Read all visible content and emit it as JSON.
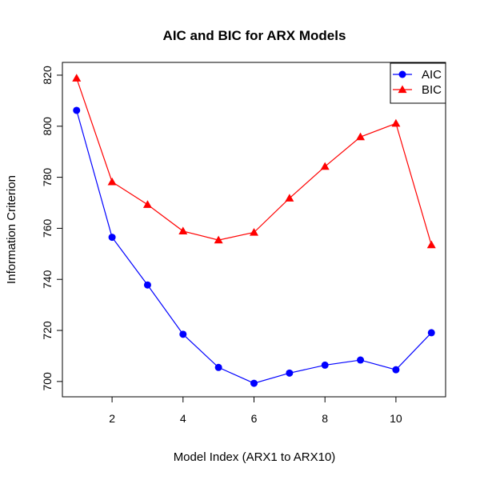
{
  "chart_data": {
    "type": "line",
    "title": "AIC and BIC for ARX Models",
    "xlabel": "Model Index (ARX1 to ARX10)",
    "ylabel": "Information Criterion",
    "xlim": [
      0.6,
      11.4
    ],
    "ylim": [
      694,
      825
    ],
    "xticks": [
      2,
      4,
      6,
      8,
      10
    ],
    "yticks": [
      700,
      720,
      740,
      760,
      780,
      800,
      820
    ],
    "grid": false,
    "legend_position": "top-right",
    "x": [
      1,
      2,
      3,
      4,
      5,
      6,
      7,
      8,
      9,
      10,
      11
    ],
    "series": [
      {
        "name": "AIC",
        "color": "#0000ff",
        "marker": "circle",
        "values": [
          806.2,
          756.5,
          737.8,
          718.5,
          705.5,
          699.3,
          703.3,
          706.4,
          708.4,
          704.6,
          719.1
        ]
      },
      {
        "name": "BIC",
        "color": "#ff0000",
        "marker": "triangle",
        "values": [
          818.8,
          778.2,
          769.3,
          758.9,
          755.4,
          758.4,
          771.8,
          784.2,
          795.8,
          801.1,
          753.5
        ]
      }
    ]
  }
}
